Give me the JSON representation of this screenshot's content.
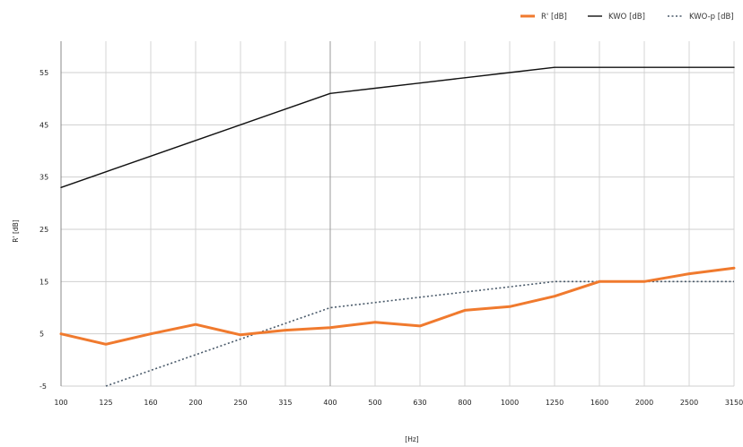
{
  "chart_data": {
    "type": "line",
    "xlabel": "[Hz]",
    "ylabel": "R' [dB]",
    "categories": [
      "100",
      "125",
      "160",
      "200",
      "250",
      "315",
      "400",
      "500",
      "630",
      "800",
      "1000",
      "1250",
      "1600",
      "2000",
      "2500",
      "3150"
    ],
    "y_ticks": [
      "-5",
      "5",
      "15",
      "25",
      "35",
      "45",
      "55"
    ],
    "ylim": [
      -5,
      61
    ],
    "grid": true,
    "legend_position": "top-right",
    "series": [
      {
        "name": "R' [dB]",
        "color": "#f07a2e",
        "style": "solid-thick",
        "values": [
          5,
          3,
          5,
          6.8,
          4.8,
          5.7,
          6.2,
          7.2,
          6.5,
          9.5,
          10.2,
          12.2,
          15,
          15,
          16.5,
          17.6
        ]
      },
      {
        "name": "KWO [dB]",
        "color": "#111111",
        "style": "solid",
        "values": [
          33,
          36,
          39,
          42,
          45,
          48,
          51,
          52,
          53,
          54,
          55,
          56,
          56,
          56,
          56,
          56
        ]
      },
      {
        "name": "KWO-p [dB]",
        "color": "#4a5a6a",
        "style": "dotted",
        "values": [
          null,
          -5,
          -2,
          1,
          4,
          7,
          10,
          11,
          12,
          13,
          14,
          15,
          15,
          15,
          15,
          15
        ]
      }
    ]
  }
}
